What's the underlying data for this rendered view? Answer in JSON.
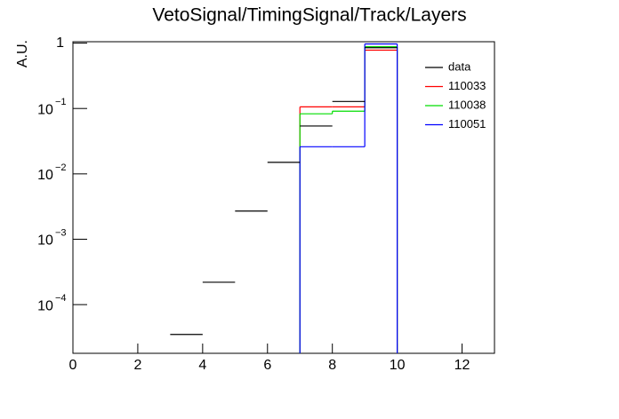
{
  "chart_data": {
    "type": "histogram",
    "title": "VetoSignal/TimingSignal/Track/Layers",
    "y_label": "A.U.",
    "log_y": true,
    "xlim": [
      0,
      13
    ],
    "xticks": [
      0,
      2,
      4,
      6,
      8,
      10,
      12
    ],
    "ylim": [
      1.8e-05,
      1.05
    ],
    "yticks": [
      {
        "value": 0.0001,
        "label": "10",
        "exponent": "−4"
      },
      {
        "value": 0.001,
        "label": "10",
        "exponent": "−3"
      },
      {
        "value": 0.01,
        "label": "10",
        "exponent": "−2"
      },
      {
        "value": 0.1,
        "label": "10",
        "exponent": "−1"
      },
      1
    ],
    "series": [
      {
        "name": "110033",
        "color": "#ff0000",
        "bins": [
          7,
          8,
          9,
          10
        ],
        "values": [
          0.106,
          0.106,
          0.78
        ]
      },
      {
        "name": "110038",
        "color": "#00dd00",
        "bins": [
          7,
          8,
          9,
          10
        ],
        "values": [
          0.083,
          0.091,
          0.88
        ]
      },
      {
        "name": "110051",
        "color": "#0000ff",
        "bins": [
          7,
          8,
          9,
          10
        ],
        "values": [
          0.026,
          0.026,
          0.97
        ]
      },
      {
        "name": "data",
        "color": "#000000",
        "bins": [
          3,
          4,
          5,
          6,
          7,
          8,
          9,
          10
        ],
        "values": [
          3.5e-05,
          0.00022,
          0.0027,
          0.015,
          0.054,
          0.128,
          0.85
        ]
      }
    ],
    "legend_order": [
      "data",
      "110033",
      "110038",
      "110051"
    ]
  }
}
